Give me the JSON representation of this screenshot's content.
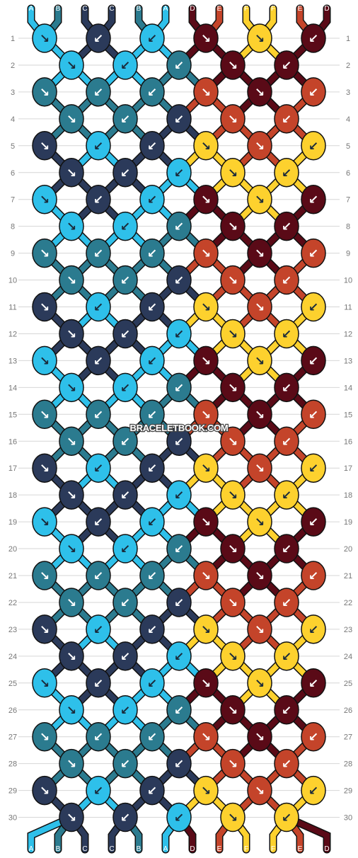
{
  "watermark": "BRACELETBOOK.COM",
  "colors": {
    "A": "#2ec0ea",
    "B": "#2b7b8f",
    "C": "#2b3a5a",
    "D": "#5a0a17",
    "E": "#c4442a",
    "F": "#fdd12e"
  },
  "top_strings": [
    "A",
    "B",
    "C",
    "C",
    "B",
    "A",
    "D",
    "E",
    "F",
    "F",
    "E",
    "D"
  ],
  "bottom_strings": [
    "A",
    "B",
    "C",
    "C",
    "B",
    "A",
    "D",
    "E",
    "F",
    "F",
    "E",
    "D"
  ],
  "rows": [
    "1",
    "2",
    "3",
    "4",
    "5",
    "6",
    "7",
    "8",
    "9",
    "10",
    "11",
    "12",
    "13",
    "14",
    "15",
    "16",
    "17",
    "18",
    "19",
    "20",
    "21",
    "22",
    "23",
    "24",
    "25",
    "26",
    "27",
    "28",
    "29",
    "30"
  ],
  "arrows": {
    "odd": [
      "↘",
      "↙",
      "↙",
      "↘",
      "↘",
      "↙"
    ],
    "even": [
      "↘",
      "↙",
      "↙",
      "↘",
      "↙"
    ]
  }
}
